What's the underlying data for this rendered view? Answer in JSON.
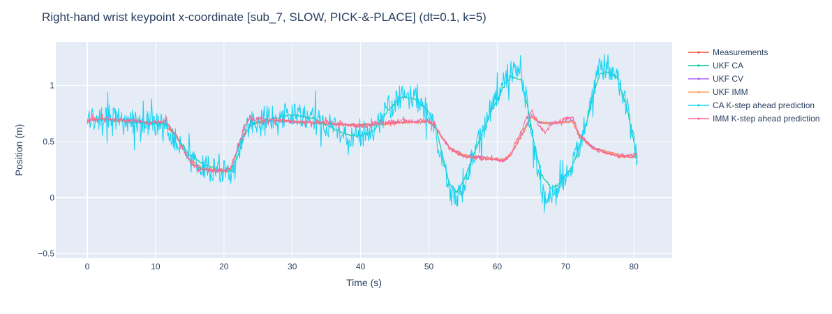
{
  "chart_data": {
    "type": "line",
    "title": "Right-hand wrist keypoint x-coordinate [sub_7, SLOW, PICK-&-PLACE]  (dt=0.1, k=5)",
    "xlabel": "Time (s)",
    "ylabel": "Position (m)",
    "xlim": [
      -4.6,
      85.6
    ],
    "ylim": [
      -0.54,
      1.39
    ],
    "xticks": [
      0,
      10,
      20,
      30,
      40,
      50,
      60,
      70,
      80
    ],
    "xtick_labels": [
      "0",
      "10",
      "20",
      "30",
      "40",
      "50",
      "60",
      "70",
      "80"
    ],
    "yticks": [
      -0.5,
      0,
      0.5,
      1
    ],
    "ytick_labels": [
      "−0.5",
      "0",
      "0.5",
      "1"
    ],
    "grid": true,
    "legend_position": "right",
    "series": [
      {
        "name": "Measurements",
        "color": "#EF553B",
        "mode": "lines+markers",
        "points": [
          [
            0,
            0.69
          ],
          [
            2,
            0.7
          ],
          [
            5,
            0.69
          ],
          [
            8,
            0.67
          ],
          [
            11,
            0.67
          ],
          [
            13,
            0.55
          ],
          [
            15,
            0.33
          ],
          [
            16.5,
            0.26
          ],
          [
            18,
            0.24
          ],
          [
            20,
            0.24
          ],
          [
            21,
            0.25
          ],
          [
            22.5,
            0.52
          ],
          [
            24,
            0.66
          ],
          [
            26,
            0.69
          ],
          [
            30,
            0.68
          ],
          [
            33,
            0.67
          ],
          [
            36,
            0.66
          ],
          [
            40,
            0.65
          ],
          [
            43,
            0.66
          ],
          [
            46,
            0.67
          ],
          [
            50,
            0.68
          ],
          [
            51,
            0.62
          ],
          [
            53,
            0.44
          ],
          [
            55,
            0.37
          ],
          [
            58,
            0.35
          ],
          [
            61,
            0.33
          ],
          [
            62,
            0.38
          ],
          [
            64,
            0.6
          ],
          [
            65,
            0.72
          ],
          [
            66,
            0.68
          ],
          [
            67,
            0.66
          ],
          [
            68,
            0.67
          ],
          [
            71,
            0.68
          ],
          [
            72,
            0.55
          ],
          [
            74,
            0.44
          ],
          [
            76,
            0.4
          ],
          [
            78,
            0.37
          ],
          [
            80.5,
            0.36
          ]
        ]
      },
      {
        "name": "UKF CA",
        "color": "#00CC96",
        "mode": "lines+markers",
        "points": [
          [
            0,
            0.69
          ],
          [
            3,
            0.7
          ],
          [
            6,
            0.68
          ],
          [
            9,
            0.66
          ],
          [
            11.5,
            0.66
          ],
          [
            13,
            0.55
          ],
          [
            15,
            0.38
          ],
          [
            17,
            0.3
          ],
          [
            19,
            0.25
          ],
          [
            21,
            0.23
          ],
          [
            22,
            0.36
          ],
          [
            23,
            0.55
          ],
          [
            24,
            0.65
          ],
          [
            27,
            0.7
          ],
          [
            30,
            0.74
          ],
          [
            33,
            0.71
          ],
          [
            36,
            0.62
          ],
          [
            38,
            0.56
          ],
          [
            40,
            0.55
          ],
          [
            42,
            0.6
          ],
          [
            44,
            0.78
          ],
          [
            46,
            0.9
          ],
          [
            48,
            0.88
          ],
          [
            50,
            0.76
          ],
          [
            51,
            0.64
          ],
          [
            52,
            0.38
          ],
          [
            53,
            0.12
          ],
          [
            54,
            0.05
          ],
          [
            55,
            0.14
          ],
          [
            57,
            0.45
          ],
          [
            59,
            0.75
          ],
          [
            61,
            1.0
          ],
          [
            62,
            1.08
          ],
          [
            63.5,
            1.05
          ],
          [
            64.5,
            0.8
          ],
          [
            65.5,
            0.45
          ],
          [
            66.5,
            0.2
          ],
          [
            68,
            0.08
          ],
          [
            69,
            0.12
          ],
          [
            71,
            0.28
          ],
          [
            72,
            0.45
          ],
          [
            73,
            0.65
          ],
          [
            74,
            0.9
          ],
          [
            75,
            1.1
          ],
          [
            76,
            1.12
          ],
          [
            77.5,
            1.08
          ],
          [
            79,
            0.8
          ],
          [
            80,
            0.5
          ],
          [
            80.5,
            0.35
          ]
        ]
      },
      {
        "name": "UKF CV",
        "color": "#AB63FA",
        "mode": "lines+markers",
        "points": [
          [
            0,
            0.69
          ],
          [
            3,
            0.7
          ],
          [
            6,
            0.69
          ],
          [
            9,
            0.67
          ],
          [
            11.5,
            0.67
          ],
          [
            13,
            0.55
          ],
          [
            15,
            0.34
          ],
          [
            17,
            0.26
          ],
          [
            20,
            0.24
          ],
          [
            21,
            0.26
          ],
          [
            22.5,
            0.5
          ],
          [
            24,
            0.66
          ],
          [
            27,
            0.69
          ],
          [
            30,
            0.68
          ],
          [
            35,
            0.66
          ],
          [
            40,
            0.64
          ],
          [
            45,
            0.67
          ],
          [
            50,
            0.68
          ],
          [
            51,
            0.62
          ],
          [
            53,
            0.45
          ],
          [
            55,
            0.38
          ],
          [
            58,
            0.36
          ],
          [
            61,
            0.33
          ],
          [
            62,
            0.38
          ],
          [
            64,
            0.62
          ],
          [
            65,
            0.74
          ],
          [
            66,
            0.68
          ],
          [
            68,
            0.66
          ],
          [
            71,
            0.69
          ],
          [
            72,
            0.56
          ],
          [
            74,
            0.45
          ],
          [
            76,
            0.41
          ],
          [
            78,
            0.38
          ],
          [
            80.5,
            0.37
          ]
        ]
      },
      {
        "name": "UKF IMM",
        "color": "#FFA15A",
        "mode": "lines+markers",
        "points": [
          [
            0,
            0.69
          ],
          [
            3,
            0.7
          ],
          [
            6,
            0.69
          ],
          [
            9,
            0.67
          ],
          [
            11.5,
            0.67
          ],
          [
            13,
            0.55
          ],
          [
            15,
            0.34
          ],
          [
            17,
            0.26
          ],
          [
            20,
            0.24
          ],
          [
            21,
            0.25
          ],
          [
            22.5,
            0.5
          ],
          [
            24,
            0.66
          ],
          [
            27,
            0.69
          ],
          [
            30,
            0.68
          ],
          [
            35,
            0.66
          ],
          [
            40,
            0.64
          ],
          [
            45,
            0.66
          ],
          [
            50,
            0.68
          ],
          [
            51,
            0.62
          ],
          [
            53,
            0.45
          ],
          [
            55,
            0.38
          ],
          [
            58,
            0.36
          ],
          [
            61,
            0.34
          ],
          [
            62,
            0.38
          ],
          [
            64,
            0.61
          ],
          [
            65,
            0.73
          ],
          [
            66,
            0.68
          ],
          [
            68,
            0.66
          ],
          [
            71,
            0.68
          ],
          [
            72,
            0.56
          ],
          [
            74,
            0.45
          ],
          [
            76,
            0.41
          ],
          [
            78,
            0.38
          ],
          [
            80.5,
            0.37
          ]
        ]
      },
      {
        "name": "CA K-step ahead prediction",
        "color": "#19D3F3",
        "mode": "lines+markers",
        "noise": 0.11,
        "points": [
          [
            0,
            0.7
          ],
          [
            3,
            0.72
          ],
          [
            6,
            0.68
          ],
          [
            9,
            0.66
          ],
          [
            11.5,
            0.66
          ],
          [
            13,
            0.5
          ],
          [
            15,
            0.33
          ],
          [
            17,
            0.28
          ],
          [
            19,
            0.24
          ],
          [
            21,
            0.22
          ],
          [
            22,
            0.38
          ],
          [
            23,
            0.58
          ],
          [
            24,
            0.68
          ],
          [
            27,
            0.72
          ],
          [
            30,
            0.74
          ],
          [
            33,
            0.72
          ],
          [
            36,
            0.62
          ],
          [
            38,
            0.56
          ],
          [
            40,
            0.55
          ],
          [
            42,
            0.62
          ],
          [
            44,
            0.78
          ],
          [
            46,
            0.92
          ],
          [
            48,
            0.88
          ],
          [
            50,
            0.75
          ],
          [
            51,
            0.6
          ],
          [
            52,
            0.35
          ],
          [
            53,
            0.05
          ],
          [
            54,
            -0.03
          ],
          [
            55,
            0.12
          ],
          [
            57,
            0.45
          ],
          [
            59,
            0.78
          ],
          [
            61,
            1.04
          ],
          [
            62,
            1.12
          ],
          [
            63.5,
            1.06
          ],
          [
            64.5,
            0.8
          ],
          [
            65.5,
            0.42
          ],
          [
            66.5,
            0.1
          ],
          [
            67,
            -0.1
          ],
          [
            68,
            0.05
          ],
          [
            69,
            0.12
          ],
          [
            71,
            0.28
          ],
          [
            72,
            0.48
          ],
          [
            73,
            0.68
          ],
          [
            74,
            0.95
          ],
          [
            75,
            1.15
          ],
          [
            76,
            1.18
          ],
          [
            77.5,
            1.1
          ],
          [
            79,
            0.8
          ],
          [
            80,
            0.45
          ],
          [
            80.5,
            0.33
          ]
        ]
      },
      {
        "name": "IMM K-step ahead prediction",
        "color": "#FF6692",
        "mode": "lines+markers",
        "noise": 0.02,
        "points": [
          [
            0,
            0.69
          ],
          [
            3,
            0.71
          ],
          [
            6,
            0.69
          ],
          [
            9,
            0.67
          ],
          [
            11.5,
            0.68
          ],
          [
            13,
            0.55
          ],
          [
            15,
            0.32
          ],
          [
            16.5,
            0.24
          ],
          [
            20,
            0.24
          ],
          [
            21,
            0.27
          ],
          [
            22.5,
            0.55
          ],
          [
            23.5,
            0.7
          ],
          [
            26,
            0.7
          ],
          [
            30,
            0.68
          ],
          [
            35,
            0.67
          ],
          [
            40,
            0.64
          ],
          [
            45,
            0.68
          ],
          [
            50,
            0.69
          ],
          [
            51,
            0.63
          ],
          [
            53,
            0.44
          ],
          [
            55,
            0.37
          ],
          [
            58,
            0.35
          ],
          [
            61,
            0.33
          ],
          [
            62,
            0.4
          ],
          [
            64,
            0.66
          ],
          [
            65,
            0.78
          ],
          [
            66,
            0.66
          ],
          [
            67,
            0.58
          ],
          [
            68,
            0.66
          ],
          [
            71,
            0.72
          ],
          [
            72,
            0.56
          ],
          [
            74,
            0.44
          ],
          [
            76,
            0.39
          ],
          [
            78,
            0.37
          ],
          [
            80.5,
            0.38
          ]
        ]
      }
    ]
  }
}
